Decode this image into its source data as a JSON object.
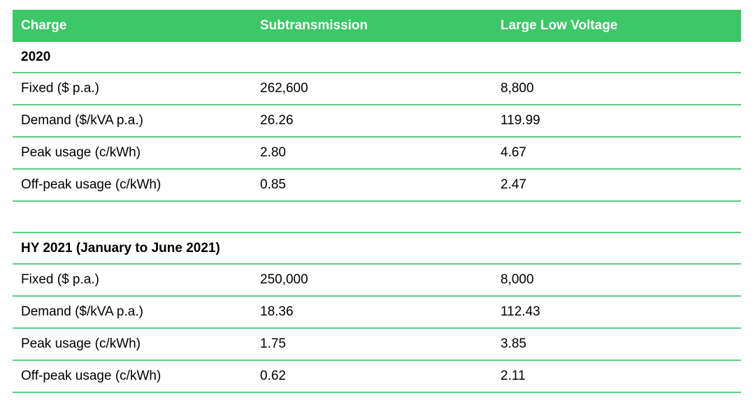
{
  "table": {
    "columns": [
      {
        "label": "Charge"
      },
      {
        "label": "Subtransmission"
      },
      {
        "label": "Large Low Voltage"
      }
    ],
    "sections": [
      {
        "heading": "2020",
        "rows": [
          {
            "charge": "Fixed ($ p.a.)",
            "subtransmission": "262,600",
            "large_low_voltage": "8,800"
          },
          {
            "charge": "Demand ($/kVA p.a.)",
            "subtransmission": "26.26",
            "large_low_voltage": "119.99"
          },
          {
            "charge": "Peak usage (c/kWh)",
            "subtransmission": "2.80",
            "large_low_voltage": "4.67"
          },
          {
            "charge": "Off-peak usage (c/kWh)",
            "subtransmission": "0.85",
            "large_low_voltage": "2.47"
          }
        ]
      },
      {
        "heading": "HY 2021 (January to June 2021)",
        "rows": [
          {
            "charge": "Fixed ($ p.a.)",
            "subtransmission": "250,000",
            "large_low_voltage": "8,000"
          },
          {
            "charge": "Demand ($/kVA p.a.)",
            "subtransmission": "18.36",
            "large_low_voltage": "112.43"
          },
          {
            "charge": "Peak usage (c/kWh)",
            "subtransmission": "1.75",
            "large_low_voltage": "3.85"
          },
          {
            "charge": "Off-peak usage (c/kWh)",
            "subtransmission": "0.62",
            "large_low_voltage": "2.11"
          }
        ]
      }
    ],
    "colors": {
      "header_bg": "#3cc768",
      "header_text": "#ffffff",
      "divider": "#5dcd83",
      "body_text": "#000000"
    }
  }
}
